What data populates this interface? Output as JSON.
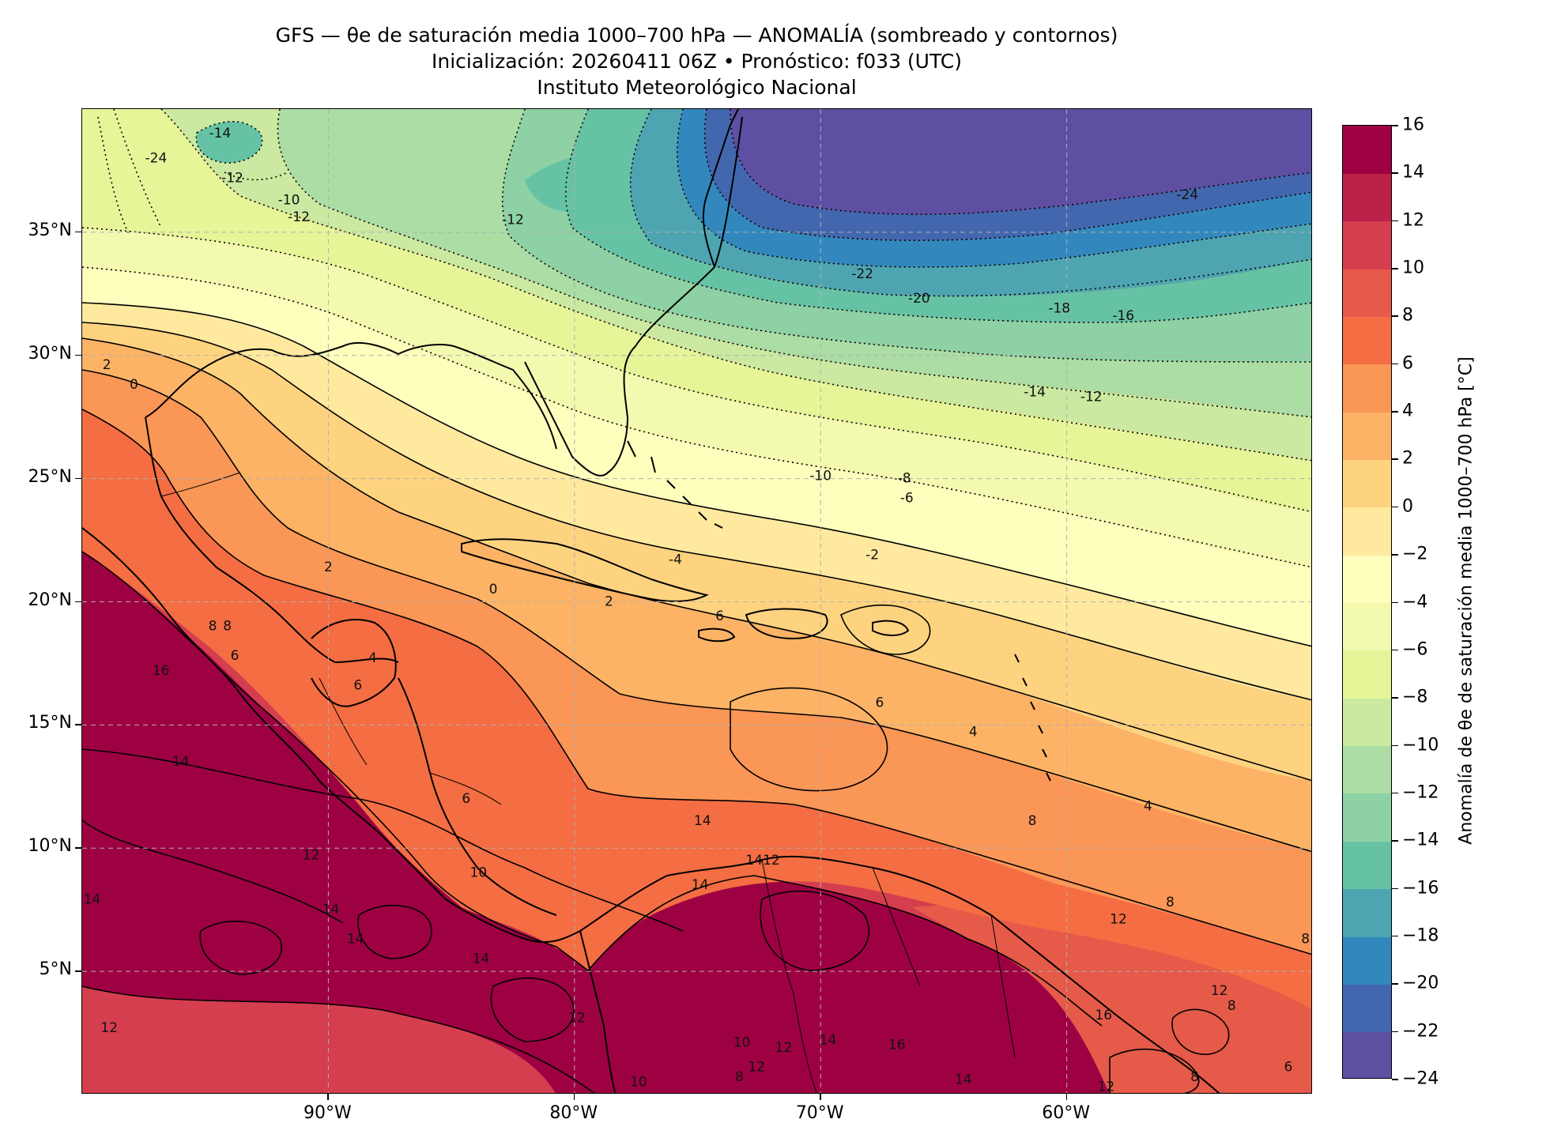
{
  "title": {
    "line1": "GFS — θe de saturación media 1000–700 hPa — ANOMALÍA (sombreado y contornos)",
    "line2": "Inicialización: 20260411 06Z   •   Pronóstico: f033 (UTC)",
    "line3": "Instituto Meteorológico Nacional"
  },
  "map": {
    "extent": {
      "lon_min": -100,
      "lon_max": -50,
      "lat_min": 0,
      "lat_max": 40
    },
    "lat_ticks": [
      {
        "value": 35,
        "label": "35°N"
      },
      {
        "value": 30,
        "label": "30°N"
      },
      {
        "value": 25,
        "label": "25°N"
      },
      {
        "value": 20,
        "label": "20°N"
      },
      {
        "value": 15,
        "label": "15°N"
      },
      {
        "value": 10,
        "label": "10°N"
      },
      {
        "value": 5,
        "label": "5°N"
      }
    ],
    "lon_ticks": [
      {
        "value": -90,
        "label": "90°W"
      },
      {
        "value": -80,
        "label": "80°W"
      },
      {
        "value": -70,
        "label": "70°W"
      },
      {
        "value": -60,
        "label": "60°W"
      }
    ],
    "gridlines": true,
    "contour_labels": [
      {
        "text": "-14",
        "lon": -94.4,
        "lat": 39.0
      },
      {
        "text": "-12",
        "lon": -93.9,
        "lat": 37.2
      },
      {
        "text": "-10",
        "lon": -91.6,
        "lat": 36.3
      },
      {
        "text": "-12",
        "lon": -91.2,
        "lat": 35.6
      },
      {
        "text": "-24",
        "lon": -97.0,
        "lat": 38.0
      },
      {
        "text": "-12",
        "lon": -82.5,
        "lat": 35.5
      },
      {
        "text": "0",
        "lon": -97.9,
        "lat": 28.8
      },
      {
        "text": "2",
        "lon": -99.0,
        "lat": 29.6
      },
      {
        "text": "-22",
        "lon": -68.3,
        "lat": 33.3
      },
      {
        "text": "-20",
        "lon": -66.0,
        "lat": 32.3
      },
      {
        "text": "-18",
        "lon": -60.3,
        "lat": 31.9
      },
      {
        "text": "-16",
        "lon": -57.7,
        "lat": 31.6
      },
      {
        "text": "-24",
        "lon": -55.1,
        "lat": 36.5
      },
      {
        "text": "-14",
        "lon": -61.3,
        "lat": 28.5
      },
      {
        "text": "-12",
        "lon": -59.0,
        "lat": 28.3
      },
      {
        "text": "-10",
        "lon": -70.0,
        "lat": 25.1
      },
      {
        "text": "-8",
        "lon": -66.6,
        "lat": 25.0
      },
      {
        "text": "-6",
        "lon": -66.5,
        "lat": 24.2
      },
      {
        "text": "-2",
        "lon": -67.9,
        "lat": 21.9
      },
      {
        "text": "-4",
        "lon": -75.9,
        "lat": 21.7
      },
      {
        "text": "2",
        "lon": -90.0,
        "lat": 21.4
      },
      {
        "text": "2",
        "lon": -78.6,
        "lat": 20.0
      },
      {
        "text": "0",
        "lon": -83.3,
        "lat": 20.5
      },
      {
        "text": "6",
        "lon": -74.1,
        "lat": 19.4
      },
      {
        "text": "8",
        "lon": -94.7,
        "lat": 19.0
      },
      {
        "text": "8",
        "lon": -94.1,
        "lat": 19.0
      },
      {
        "text": "6",
        "lon": -93.8,
        "lat": 17.8
      },
      {
        "text": "4",
        "lon": -88.2,
        "lat": 17.7
      },
      {
        "text": "6",
        "lon": -88.8,
        "lat": 16.6
      },
      {
        "text": "16",
        "lon": -96.8,
        "lat": 17.2
      },
      {
        "text": "6",
        "lon": -67.6,
        "lat": 15.9
      },
      {
        "text": "4",
        "lon": -63.8,
        "lat": 14.7
      },
      {
        "text": "4",
        "lon": -56.7,
        "lat": 11.7
      },
      {
        "text": "14",
        "lon": -96.0,
        "lat": 13.5
      },
      {
        "text": "6",
        "lon": -84.4,
        "lat": 12.0
      },
      {
        "text": "8",
        "lon": -61.4,
        "lat": 11.1
      },
      {
        "text": "14",
        "lon": -74.8,
        "lat": 11.1
      },
      {
        "text": "14",
        "lon": -72.7,
        "lat": 9.5
      },
      {
        "text": "12",
        "lon": -72.0,
        "lat": 9.5
      },
      {
        "text": "12",
        "lon": -90.7,
        "lat": 9.7
      },
      {
        "text": "10",
        "lon": -83.9,
        "lat": 9.0
      },
      {
        "text": "14",
        "lon": -74.9,
        "lat": 8.5
      },
      {
        "text": "14",
        "lon": -99.6,
        "lat": 7.9
      },
      {
        "text": "14",
        "lon": -89.9,
        "lat": 7.5
      },
      {
        "text": "14",
        "lon": -88.9,
        "lat": 6.3
      },
      {
        "text": "14",
        "lon": -83.8,
        "lat": 5.5
      },
      {
        "text": "8",
        "lon": -55.8,
        "lat": 7.8
      },
      {
        "text": "12",
        "lon": -57.9,
        "lat": 7.1
      },
      {
        "text": "8",
        "lon": -50.3,
        "lat": 6.3
      },
      {
        "text": "12",
        "lon": -79.9,
        "lat": 3.1
      },
      {
        "text": "12",
        "lon": -98.9,
        "lat": 2.7
      },
      {
        "text": "10",
        "lon": -73.2,
        "lat": 2.1
      },
      {
        "text": "12",
        "lon": -71.5,
        "lat": 1.9
      },
      {
        "text": "14",
        "lon": -69.7,
        "lat": 2.2
      },
      {
        "text": "16",
        "lon": -66.9,
        "lat": 2.0
      },
      {
        "text": "16",
        "lon": -58.5,
        "lat": 3.2
      },
      {
        "text": "12",
        "lon": -53.8,
        "lat": 4.2
      },
      {
        "text": "8",
        "lon": -53.3,
        "lat": 3.6
      },
      {
        "text": "12",
        "lon": -72.6,
        "lat": 1.1
      },
      {
        "text": "10",
        "lon": -77.4,
        "lat": 0.5
      },
      {
        "text": "8",
        "lon": -73.3,
        "lat": 0.7
      },
      {
        "text": "14",
        "lon": -64.2,
        "lat": 0.6
      },
      {
        "text": "12",
        "lon": -58.4,
        "lat": 0.3
      },
      {
        "text": "8",
        "lon": -54.8,
        "lat": 0.7
      },
      {
        "text": "6",
        "lon": -51.0,
        "lat": 1.1
      }
    ]
  },
  "colorbar": {
    "label": "Anomalía de θe de saturación media 1000–700 hPa [°C]",
    "levels": [
      -24,
      -22,
      -20,
      -18,
      -16,
      -14,
      -12,
      -10,
      -8,
      -6,
      -4,
      -2,
      0,
      2,
      4,
      6,
      8,
      10,
      12,
      14,
      16
    ],
    "tick_labels": [
      "16",
      "14",
      "12",
      "10",
      "8",
      "6",
      "4",
      "2",
      "0",
      "−2",
      "−4",
      "−6",
      "−8",
      "−10",
      "−12",
      "−14",
      "−16",
      "−18",
      "−20",
      "−22",
      "−24"
    ],
    "colors": [
      "#5e4fa2",
      "#4367ae",
      "#3288bd",
      "#4ea5b1",
      "#66c2a5",
      "#8dd1a4",
      "#abdda4",
      "#cbe9a0",
      "#e6f598",
      "#f3fab0",
      "#fefebd",
      "#fee99e",
      "#fed380",
      "#fdb365",
      "#fa9656",
      "#f46d43",
      "#e55a49",
      "#d53e4f",
      "#bc2149",
      "#9e0142"
    ]
  }
}
